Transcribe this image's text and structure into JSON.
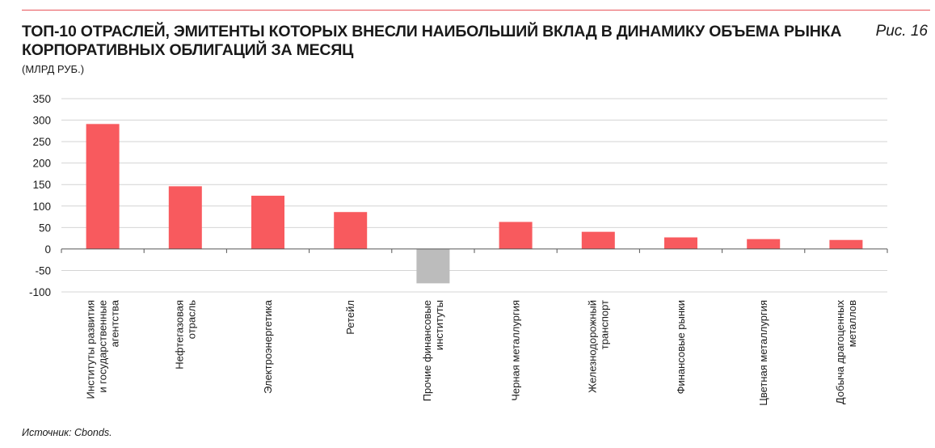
{
  "header": {
    "title_line1": "ТОП-10 ОТРАСЛЕЙ, ЭМИТЕНТЫ КОТОРЫХ ВНЕСЛИ НАИБОЛЬШИЙ ВКЛАД В ДИНАМИКУ ОБЪЕМА РЫНКА",
    "title_line2": "КОРПОРАТИВНЫХ ОБЛИГАЦИЙ ЗА МЕСЯЦ",
    "units": "(МЛРД РУБ.)",
    "figure_label": "Рис. 16"
  },
  "footer": {
    "source": "Источник: Cbonds."
  },
  "colors": {
    "positive": "#f85a5e",
    "negative": "#bcbcbc",
    "grid": "#d4d4d4",
    "accent_rule": "#e8555a"
  },
  "chart_data": {
    "type": "bar",
    "title": "ТОП-10 ОТРАСЛЕЙ, ЭМИТЕНТЫ КОТОРЫХ ВНЕСЛИ НАИБОЛЬШИЙ ВКЛАД В ДИНАМИКУ ОБЪЕМА РЫНКА КОРПОРАТИВНЫХ ОБЛИГАЦИЙ ЗА МЕСЯЦ",
    "ylabel": "(МЛРД РУБ.)",
    "ylim": [
      -100,
      350
    ],
    "yticks": [
      350,
      300,
      250,
      200,
      150,
      100,
      50,
      0,
      -50,
      -100
    ],
    "grid": true,
    "legend": "none",
    "categories": [
      [
        "Институты развития",
        "и государственные",
        "агентства"
      ],
      [
        "Нефтегазовая",
        "отрасль"
      ],
      [
        "Электроэнергетика"
      ],
      [
        "Ретейл"
      ],
      [
        "Прочие финансовые",
        "институты"
      ],
      [
        "Черная металлургия"
      ],
      [
        "Железнодорожный",
        "транспорт"
      ],
      [
        "Финансовые рынки"
      ],
      [
        "Цветная металлургия"
      ],
      [
        "Добыча драгоценных",
        "металлов"
      ]
    ],
    "values": [
      291,
      146,
      124,
      86,
      -80,
      63,
      40,
      27,
      23,
      21
    ]
  }
}
